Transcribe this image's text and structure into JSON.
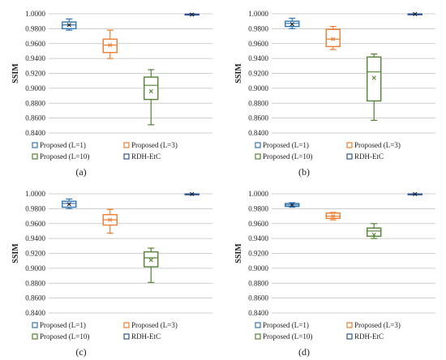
{
  "chart_data": [
    {
      "type": "box",
      "panel_label": "(a)",
      "ylabel": "SSIM",
      "ylim": [
        0.84,
        1.0
      ],
      "yticks": [
        "0.8400",
        "0.8600",
        "0.8800",
        "0.9000",
        "0.9200",
        "0.9400",
        "0.9600",
        "0.9800",
        "1.0000"
      ],
      "legend": [
        "Proposed (L=1)",
        "Proposed (L=3)",
        "Proposed (L=10)",
        "RDH-EtC"
      ],
      "series": [
        {
          "name": "Proposed (L=1)",
          "color": "#2e75b6",
          "min": 0.978,
          "q1": 0.98,
          "median": 0.985,
          "q3": 0.989,
          "max": 0.993,
          "mean": 0.985
        },
        {
          "name": "Proposed (L=3)",
          "color": "#ed7d31",
          "min": 0.94,
          "q1": 0.948,
          "median": 0.958,
          "q3": 0.966,
          "max": 0.978,
          "mean": 0.958
        },
        {
          "name": "Proposed (L=10)",
          "color": "#548235",
          "min": 0.851,
          "q1": 0.885,
          "median": 0.904,
          "q3": 0.915,
          "max": 0.925,
          "mean": 0.896
        },
        {
          "name": "RDH-EtC",
          "color": "#2f5597",
          "min": 0.998,
          "q1": 0.9985,
          "median": 0.999,
          "q3": 0.9995,
          "max": 1.0,
          "mean": 0.999
        }
      ]
    },
    {
      "type": "box",
      "panel_label": "(b)",
      "ylabel": "SSIM",
      "ylim": [
        0.84,
        1.0
      ],
      "yticks": [
        "0.8400",
        "0.8600",
        "0.8800",
        "0.9000",
        "0.9200",
        "0.9400",
        "0.9600",
        "0.9800",
        "1.0000"
      ],
      "legend": [
        "Proposed (L=1)",
        "Proposed (L=3)",
        "Proposed (L=10)",
        "RDH-EtC"
      ],
      "series": [
        {
          "name": "Proposed (L=1)",
          "color": "#2e75b6",
          "min": 0.98,
          "q1": 0.983,
          "median": 0.987,
          "q3": 0.99,
          "max": 0.994,
          "mean": 0.986
        },
        {
          "name": "Proposed (L=3)",
          "color": "#ed7d31",
          "min": 0.952,
          "q1": 0.956,
          "median": 0.966,
          "q3": 0.979,
          "max": 0.983,
          "mean": 0.966
        },
        {
          "name": "Proposed (L=10)",
          "color": "#548235",
          "min": 0.857,
          "q1": 0.883,
          "median": 0.922,
          "q3": 0.942,
          "max": 0.946,
          "mean": 0.914
        },
        {
          "name": "RDH-EtC",
          "color": "#2f5597",
          "min": 0.999,
          "q1": 0.9993,
          "median": 0.9996,
          "q3": 0.9998,
          "max": 1.0,
          "mean": 0.9996
        }
      ]
    },
    {
      "type": "box",
      "panel_label": "(c)",
      "ylabel": "SSIM",
      "ylim": [
        0.84,
        1.0
      ],
      "yticks": [
        "0.8400",
        "0.8600",
        "0.8800",
        "0.9000",
        "0.9200",
        "0.9400",
        "0.9600",
        "0.9800",
        "1.0000"
      ],
      "legend": [
        "Proposed (L=1)",
        "Proposed (L=3)",
        "Proposed (L=10)",
        "RDH-EtC"
      ],
      "series": [
        {
          "name": "Proposed (L=1)",
          "color": "#2e75b6",
          "min": 0.98,
          "q1": 0.982,
          "median": 0.987,
          "q3": 0.99,
          "max": 0.993,
          "mean": 0.986
        },
        {
          "name": "Proposed (L=3)",
          "color": "#ed7d31",
          "min": 0.947,
          "q1": 0.958,
          "median": 0.965,
          "q3": 0.972,
          "max": 0.979,
          "mean": 0.965
        },
        {
          "name": "Proposed (L=10)",
          "color": "#548235",
          "min": 0.881,
          "q1": 0.902,
          "median": 0.914,
          "q3": 0.922,
          "max": 0.927,
          "mean": 0.911
        },
        {
          "name": "RDH-EtC",
          "color": "#2f5597",
          "min": 0.999,
          "q1": 0.9993,
          "median": 0.9996,
          "q3": 0.9998,
          "max": 1.0,
          "mean": 0.9996
        }
      ]
    },
    {
      "type": "box",
      "panel_label": "(d)",
      "ylabel": "SSIM",
      "ylim": [
        0.84,
        1.0
      ],
      "yticks": [
        "0.8400",
        "0.8600",
        "0.8800",
        "0.9000",
        "0.9200",
        "0.9400",
        "0.9600",
        "0.9800",
        "1.0000"
      ],
      "legend": [
        "Proposed (L=1)",
        "Proposed (L=3)",
        "Proposed (L=10)",
        "RDH-EtC"
      ],
      "series": [
        {
          "name": "Proposed (L=1)",
          "color": "#2e75b6",
          "min": 0.982,
          "q1": 0.983,
          "median": 0.985,
          "q3": 0.987,
          "max": 0.988,
          "mean": 0.985
        },
        {
          "name": "Proposed (L=3)",
          "color": "#ed7d31",
          "min": 0.965,
          "q1": 0.967,
          "median": 0.97,
          "q3": 0.974,
          "max": 0.975,
          "mean": 0.97
        },
        {
          "name": "Proposed (L=10)",
          "color": "#548235",
          "min": 0.94,
          "q1": 0.943,
          "median": 0.95,
          "q3": 0.954,
          "max": 0.96,
          "mean": 0.945
        },
        {
          "name": "RDH-EtC",
          "color": "#2f5597",
          "min": 0.999,
          "q1": 0.9993,
          "median": 0.9996,
          "q3": 0.9998,
          "max": 1.0,
          "mean": 0.9996
        }
      ]
    }
  ]
}
